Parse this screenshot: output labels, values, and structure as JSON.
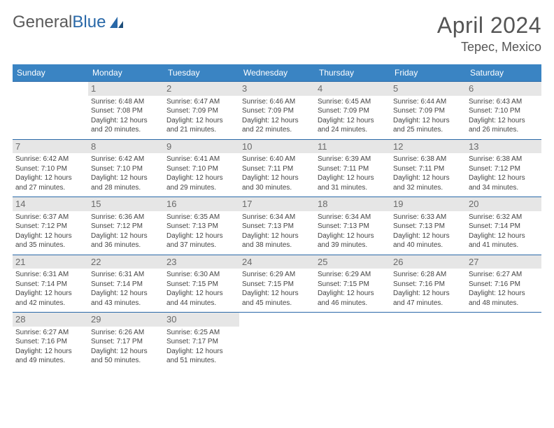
{
  "brand": {
    "part1": "General",
    "part2": "Blue"
  },
  "title": "April 2024",
  "location": "Tepec, Mexico",
  "colors": {
    "header_bg": "#3a84c3",
    "header_text": "#ffffff",
    "rule": "#2968a8",
    "daynum_bg": "#e6e6e6",
    "daynum_text": "#6b6b6b",
    "body_text": "#444444",
    "title_text": "#555555",
    "logo_gray": "#5a5a5a",
    "logo_blue": "#2968a8",
    "background": "#ffffff"
  },
  "typography": {
    "month_fontsize": 32,
    "location_fontsize": 18,
    "weekday_fontsize": 12,
    "daynum_fontsize": 13,
    "cell_fontsize": 10,
    "logo_fontsize": 24
  },
  "weekdays": [
    "Sunday",
    "Monday",
    "Tuesday",
    "Wednesday",
    "Thursday",
    "Friday",
    "Saturday"
  ],
  "weeks": [
    [
      {
        "day": "",
        "text": ""
      },
      {
        "day": "1",
        "text": "Sunrise: 6:48 AM\nSunset: 7:08 PM\nDaylight: 12 hours and 20 minutes."
      },
      {
        "day": "2",
        "text": "Sunrise: 6:47 AM\nSunset: 7:09 PM\nDaylight: 12 hours and 21 minutes."
      },
      {
        "day": "3",
        "text": "Sunrise: 6:46 AM\nSunset: 7:09 PM\nDaylight: 12 hours and 22 minutes."
      },
      {
        "day": "4",
        "text": "Sunrise: 6:45 AM\nSunset: 7:09 PM\nDaylight: 12 hours and 24 minutes."
      },
      {
        "day": "5",
        "text": "Sunrise: 6:44 AM\nSunset: 7:09 PM\nDaylight: 12 hours and 25 minutes."
      },
      {
        "day": "6",
        "text": "Sunrise: 6:43 AM\nSunset: 7:10 PM\nDaylight: 12 hours and 26 minutes."
      }
    ],
    [
      {
        "day": "7",
        "text": "Sunrise: 6:42 AM\nSunset: 7:10 PM\nDaylight: 12 hours and 27 minutes."
      },
      {
        "day": "8",
        "text": "Sunrise: 6:42 AM\nSunset: 7:10 PM\nDaylight: 12 hours and 28 minutes."
      },
      {
        "day": "9",
        "text": "Sunrise: 6:41 AM\nSunset: 7:10 PM\nDaylight: 12 hours and 29 minutes."
      },
      {
        "day": "10",
        "text": "Sunrise: 6:40 AM\nSunset: 7:11 PM\nDaylight: 12 hours and 30 minutes."
      },
      {
        "day": "11",
        "text": "Sunrise: 6:39 AM\nSunset: 7:11 PM\nDaylight: 12 hours and 31 minutes."
      },
      {
        "day": "12",
        "text": "Sunrise: 6:38 AM\nSunset: 7:11 PM\nDaylight: 12 hours and 32 minutes."
      },
      {
        "day": "13",
        "text": "Sunrise: 6:38 AM\nSunset: 7:12 PM\nDaylight: 12 hours and 34 minutes."
      }
    ],
    [
      {
        "day": "14",
        "text": "Sunrise: 6:37 AM\nSunset: 7:12 PM\nDaylight: 12 hours and 35 minutes."
      },
      {
        "day": "15",
        "text": "Sunrise: 6:36 AM\nSunset: 7:12 PM\nDaylight: 12 hours and 36 minutes."
      },
      {
        "day": "16",
        "text": "Sunrise: 6:35 AM\nSunset: 7:13 PM\nDaylight: 12 hours and 37 minutes."
      },
      {
        "day": "17",
        "text": "Sunrise: 6:34 AM\nSunset: 7:13 PM\nDaylight: 12 hours and 38 minutes."
      },
      {
        "day": "18",
        "text": "Sunrise: 6:34 AM\nSunset: 7:13 PM\nDaylight: 12 hours and 39 minutes."
      },
      {
        "day": "19",
        "text": "Sunrise: 6:33 AM\nSunset: 7:13 PM\nDaylight: 12 hours and 40 minutes."
      },
      {
        "day": "20",
        "text": "Sunrise: 6:32 AM\nSunset: 7:14 PM\nDaylight: 12 hours and 41 minutes."
      }
    ],
    [
      {
        "day": "21",
        "text": "Sunrise: 6:31 AM\nSunset: 7:14 PM\nDaylight: 12 hours and 42 minutes."
      },
      {
        "day": "22",
        "text": "Sunrise: 6:31 AM\nSunset: 7:14 PM\nDaylight: 12 hours and 43 minutes."
      },
      {
        "day": "23",
        "text": "Sunrise: 6:30 AM\nSunset: 7:15 PM\nDaylight: 12 hours and 44 minutes."
      },
      {
        "day": "24",
        "text": "Sunrise: 6:29 AM\nSunset: 7:15 PM\nDaylight: 12 hours and 45 minutes."
      },
      {
        "day": "25",
        "text": "Sunrise: 6:29 AM\nSunset: 7:15 PM\nDaylight: 12 hours and 46 minutes."
      },
      {
        "day": "26",
        "text": "Sunrise: 6:28 AM\nSunset: 7:16 PM\nDaylight: 12 hours and 47 minutes."
      },
      {
        "day": "27",
        "text": "Sunrise: 6:27 AM\nSunset: 7:16 PM\nDaylight: 12 hours and 48 minutes."
      }
    ],
    [
      {
        "day": "28",
        "text": "Sunrise: 6:27 AM\nSunset: 7:16 PM\nDaylight: 12 hours and 49 minutes."
      },
      {
        "day": "29",
        "text": "Sunrise: 6:26 AM\nSunset: 7:17 PM\nDaylight: 12 hours and 50 minutes."
      },
      {
        "day": "30",
        "text": "Sunrise: 6:25 AM\nSunset: 7:17 PM\nDaylight: 12 hours and 51 minutes."
      },
      {
        "day": "",
        "text": ""
      },
      {
        "day": "",
        "text": ""
      },
      {
        "day": "",
        "text": ""
      },
      {
        "day": "",
        "text": ""
      }
    ]
  ]
}
